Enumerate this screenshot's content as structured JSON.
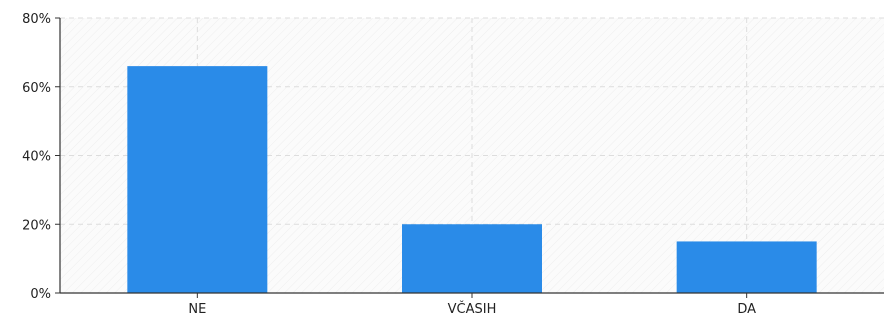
{
  "chart_data": {
    "type": "bar",
    "categories": [
      "NE",
      "VČASIH",
      "DA"
    ],
    "values": [
      66,
      20,
      15
    ],
    "ylim": [
      0,
      80
    ],
    "yticks": [
      0,
      20,
      40,
      60,
      80
    ],
    "ytick_labels": [
      "0%",
      "20%",
      "40%",
      "60%",
      "80%"
    ],
    "title": "",
    "xlabel": "",
    "ylabel": "",
    "grid": true,
    "legend": "none",
    "bar_color": "#2a8be8",
    "grid_color": "#dddddd"
  }
}
